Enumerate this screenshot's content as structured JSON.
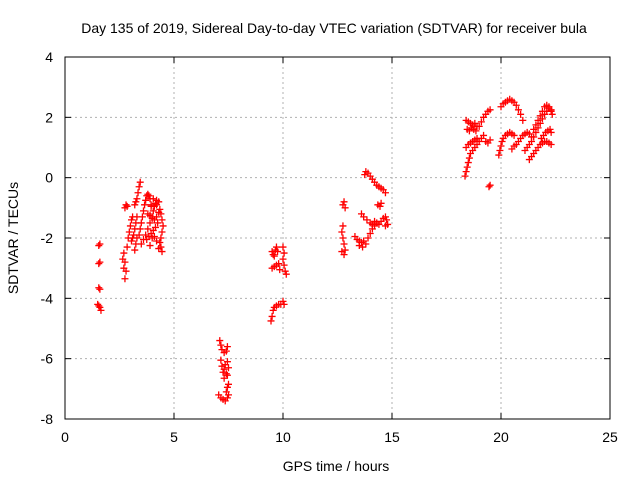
{
  "chart_data": {
    "type": "scatter",
    "title": "Day 135 of 2019, Sidereal Day-to-day VTEC variation (SDTVAR) for receiver bula",
    "xlabel": "GPS time / hours",
    "ylabel": "SDTVAR / TECUs",
    "xlim": [
      0,
      25
    ],
    "ylim": [
      -8,
      4
    ],
    "xticks": [
      0,
      5,
      10,
      15,
      20,
      25
    ],
    "yticks": [
      -8,
      -6,
      -4,
      -2,
      0,
      2,
      4
    ],
    "xtick_labels": [
      "0",
      "5",
      "10",
      "15",
      "20",
      "25"
    ],
    "ytick_labels": [
      "-8",
      "-6",
      "-4",
      "-2",
      "0",
      "2",
      "4"
    ],
    "grid": true,
    "marker": "plus",
    "color": "#ff0000",
    "series": [
      {
        "points": [
          [
            1.55,
            -2.25
          ],
          [
            1.6,
            -2.2
          ],
          [
            1.55,
            -2.85
          ],
          [
            1.6,
            -2.8
          ],
          [
            1.55,
            -3.65
          ],
          [
            1.6,
            -3.7
          ],
          [
            1.5,
            -4.2
          ],
          [
            1.55,
            -4.25
          ],
          [
            1.6,
            -4.3
          ],
          [
            1.65,
            -4.4
          ],
          [
            2.65,
            -2.7
          ],
          [
            2.7,
            -2.5
          ],
          [
            2.75,
            -2.8
          ],
          [
            2.8,
            -3.1
          ],
          [
            2.75,
            -3.35
          ],
          [
            2.7,
            -3.0
          ],
          [
            2.85,
            -2.3
          ],
          [
            2.9,
            -2.0
          ],
          [
            2.95,
            -1.8
          ],
          [
            3.0,
            -1.6
          ],
          [
            3.05,
            -1.4
          ],
          [
            3.1,
            -1.3
          ],
          [
            2.75,
            -1.0
          ],
          [
            2.8,
            -0.9
          ],
          [
            2.85,
            -0.95
          ],
          [
            3.05,
            -2.1
          ],
          [
            3.1,
            -2.0
          ],
          [
            3.15,
            -1.9
          ],
          [
            3.2,
            -1.7
          ],
          [
            3.25,
            -1.5
          ],
          [
            3.3,
            -1.3
          ],
          [
            3.2,
            -0.9
          ],
          [
            3.25,
            -0.8
          ],
          [
            3.3,
            -0.7
          ],
          [
            3.35,
            -0.5
          ],
          [
            3.4,
            -0.3
          ],
          [
            3.45,
            -0.15
          ],
          [
            3.2,
            -2.4
          ],
          [
            3.25,
            -2.2
          ],
          [
            3.3,
            -2.0
          ],
          [
            3.4,
            -1.9
          ],
          [
            3.45,
            -1.7
          ],
          [
            3.5,
            -1.5
          ],
          [
            3.55,
            -1.3
          ],
          [
            3.6,
            -1.1
          ],
          [
            3.65,
            -0.9
          ],
          [
            3.7,
            -0.75
          ],
          [
            3.75,
            -0.6
          ],
          [
            3.8,
            -0.55
          ],
          [
            3.85,
            -0.6
          ],
          [
            3.9,
            -0.7
          ],
          [
            3.95,
            -0.9
          ],
          [
            3.5,
            -2.2
          ],
          [
            3.6,
            -2.05
          ],
          [
            3.7,
            -1.9
          ],
          [
            3.8,
            -1.7
          ],
          [
            3.9,
            -1.5
          ],
          [
            4.0,
            -1.3
          ],
          [
            4.05,
            -1.1
          ],
          [
            4.1,
            -0.95
          ],
          [
            4.15,
            -0.85
          ],
          [
            4.2,
            -0.9
          ],
          [
            3.75,
            -2.05
          ],
          [
            3.85,
            -1.95
          ],
          [
            3.95,
            -1.85
          ],
          [
            4.05,
            -1.75
          ],
          [
            4.15,
            -1.65
          ],
          [
            4.25,
            -1.5
          ],
          [
            3.8,
            -1.2
          ],
          [
            3.9,
            -1.25
          ],
          [
            4.0,
            -1.35
          ],
          [
            4.1,
            -1.4
          ],
          [
            4.2,
            -1.3
          ],
          [
            4.3,
            -1.15
          ],
          [
            4.35,
            -1.05
          ],
          [
            4.4,
            -1.2
          ],
          [
            4.45,
            -1.4
          ],
          [
            4.5,
            -1.6
          ],
          [
            4.45,
            -1.8
          ],
          [
            4.4,
            -2.0
          ],
          [
            4.35,
            -2.15
          ],
          [
            4.4,
            -2.3
          ],
          [
            4.45,
            -2.45
          ],
          [
            4.3,
            -2.35
          ],
          [
            4.2,
            -2.1
          ],
          [
            4.1,
            -1.95
          ],
          [
            4.0,
            -2.0
          ],
          [
            3.9,
            -2.25
          ],
          [
            3.95,
            -0.95
          ],
          [
            4.05,
            -0.7
          ],
          [
            4.2,
            -0.75
          ],
          [
            4.3,
            -0.8
          ],
          [
            7.1,
            -5.4
          ],
          [
            7.15,
            -5.55
          ],
          [
            7.2,
            -5.7
          ],
          [
            7.3,
            -5.8
          ],
          [
            7.4,
            -5.75
          ],
          [
            7.45,
            -5.6
          ],
          [
            7.15,
            -6.05
          ],
          [
            7.2,
            -6.25
          ],
          [
            7.25,
            -6.45
          ],
          [
            7.3,
            -6.35
          ],
          [
            7.35,
            -6.2
          ],
          [
            7.45,
            -6.1
          ],
          [
            7.5,
            -6.3
          ],
          [
            7.45,
            -6.55
          ],
          [
            7.4,
            -6.5
          ],
          [
            7.3,
            -6.65
          ],
          [
            7.05,
            -7.2
          ],
          [
            7.15,
            -7.3
          ],
          [
            7.25,
            -7.35
          ],
          [
            7.35,
            -7.4
          ],
          [
            7.4,
            -7.1
          ],
          [
            7.45,
            -6.95
          ],
          [
            7.5,
            -6.85
          ],
          [
            7.5,
            -7.2
          ],
          [
            7.45,
            -7.3
          ],
          [
            9.5,
            -2.45
          ],
          [
            9.55,
            -2.55
          ],
          [
            9.6,
            -2.6
          ],
          [
            9.65,
            -2.4
          ],
          [
            9.7,
            -2.3
          ],
          [
            9.75,
            -2.45
          ],
          [
            9.5,
            -3.0
          ],
          [
            9.6,
            -2.95
          ],
          [
            9.7,
            -2.9
          ],
          [
            9.8,
            -2.85
          ],
          [
            9.85,
            -3.05
          ],
          [
            9.45,
            -4.75
          ],
          [
            9.5,
            -4.6
          ],
          [
            9.55,
            -4.4
          ],
          [
            9.6,
            -4.3
          ],
          [
            9.7,
            -4.25
          ],
          [
            9.8,
            -4.2
          ],
          [
            9.9,
            -4.2
          ],
          [
            10.0,
            -4.1
          ],
          [
            10.05,
            -4.2
          ],
          [
            10.0,
            -2.3
          ],
          [
            10.05,
            -2.5
          ],
          [
            10.0,
            -2.7
          ],
          [
            10.05,
            -2.9
          ],
          [
            10.1,
            -3.1
          ],
          [
            10.15,
            -3.2
          ],
          [
            12.75,
            -0.9
          ],
          [
            12.8,
            -0.8
          ],
          [
            12.85,
            -1.0
          ],
          [
            12.75,
            -1.6
          ],
          [
            12.7,
            -1.8
          ],
          [
            12.75,
            -2.0
          ],
          [
            12.8,
            -2.2
          ],
          [
            12.85,
            -2.4
          ],
          [
            12.8,
            -2.55
          ],
          [
            12.7,
            -2.45
          ],
          [
            13.3,
            -1.95
          ],
          [
            13.4,
            -2.05
          ],
          [
            13.5,
            -2.1
          ],
          [
            13.6,
            -2.15
          ],
          [
            13.7,
            -2.1
          ],
          [
            13.8,
            -2.2
          ],
          [
            13.65,
            -2.3
          ],
          [
            13.5,
            -2.25
          ],
          [
            13.9,
            -2.0
          ],
          [
            14.0,
            -1.85
          ],
          [
            14.1,
            -1.7
          ],
          [
            14.2,
            -1.6
          ],
          [
            14.3,
            -1.5
          ],
          [
            14.4,
            -1.55
          ],
          [
            14.5,
            -1.45
          ],
          [
            14.6,
            -1.35
          ],
          [
            14.7,
            -1.3
          ],
          [
            14.75,
            -1.4
          ],
          [
            14.8,
            -1.55
          ],
          [
            14.7,
            -1.6
          ],
          [
            13.75,
            0.1
          ],
          [
            13.8,
            0.2
          ],
          [
            13.9,
            0.15
          ],
          [
            14.0,
            0.05
          ],
          [
            14.1,
            -0.05
          ],
          [
            14.2,
            -0.15
          ],
          [
            14.3,
            -0.25
          ],
          [
            14.4,
            -0.3
          ],
          [
            14.5,
            -0.35
          ],
          [
            14.6,
            -0.4
          ],
          [
            14.7,
            -0.5
          ],
          [
            14.35,
            -0.9
          ],
          [
            14.45,
            -0.95
          ],
          [
            14.5,
            -0.85
          ],
          [
            13.6,
            -1.2
          ],
          [
            13.7,
            -1.3
          ],
          [
            13.85,
            -1.4
          ],
          [
            14.0,
            -1.5
          ],
          [
            14.1,
            -1.55
          ],
          [
            14.2,
            -1.45
          ],
          [
            18.4,
            1.9
          ],
          [
            18.5,
            1.85
          ],
          [
            18.6,
            1.8
          ],
          [
            18.7,
            1.75
          ],
          [
            18.8,
            1.8
          ],
          [
            18.9,
            1.7
          ],
          [
            18.45,
            1.6
          ],
          [
            18.55,
            1.55
          ],
          [
            18.65,
            1.65
          ],
          [
            18.75,
            1.6
          ],
          [
            18.85,
            1.55
          ],
          [
            19.0,
            1.7
          ],
          [
            19.1,
            1.85
          ],
          [
            19.2,
            2.0
          ],
          [
            19.3,
            2.1
          ],
          [
            19.4,
            2.2
          ],
          [
            19.5,
            2.25
          ],
          [
            18.4,
            1.0
          ],
          [
            18.5,
            1.1
          ],
          [
            18.6,
            1.15
          ],
          [
            18.7,
            1.2
          ],
          [
            18.8,
            1.25
          ],
          [
            18.9,
            1.3
          ],
          [
            19.0,
            1.2
          ],
          [
            19.1,
            1.3
          ],
          [
            19.2,
            1.4
          ],
          [
            19.3,
            1.2
          ],
          [
            19.4,
            1.15
          ],
          [
            19.5,
            1.25
          ],
          [
            18.35,
            0.05
          ],
          [
            18.4,
            0.2
          ],
          [
            18.45,
            0.35
          ],
          [
            18.5,
            0.5
          ],
          [
            18.55,
            0.65
          ],
          [
            18.6,
            0.8
          ],
          [
            18.7,
            0.9
          ],
          [
            18.8,
            1.0
          ],
          [
            18.9,
            1.1
          ],
          [
            19.45,
            -0.3
          ],
          [
            19.5,
            -0.25
          ],
          [
            19.9,
            0.75
          ],
          [
            19.95,
            0.9
          ],
          [
            20.0,
            1.05
          ],
          [
            20.05,
            1.2
          ],
          [
            20.1,
            1.3
          ],
          [
            20.2,
            1.4
          ],
          [
            20.3,
            1.45
          ],
          [
            20.4,
            1.5
          ],
          [
            20.5,
            1.45
          ],
          [
            20.6,
            1.4
          ],
          [
            20.0,
            2.35
          ],
          [
            20.1,
            2.45
          ],
          [
            20.2,
            2.5
          ],
          [
            20.3,
            2.55
          ],
          [
            20.4,
            2.6
          ],
          [
            20.5,
            2.55
          ],
          [
            20.6,
            2.5
          ],
          [
            20.7,
            2.4
          ],
          [
            20.8,
            2.25
          ],
          [
            20.9,
            2.1
          ],
          [
            21.0,
            1.9
          ],
          [
            20.5,
            0.95
          ],
          [
            20.6,
            1.05
          ],
          [
            20.7,
            1.1
          ],
          [
            20.8,
            1.2
          ],
          [
            20.9,
            1.3
          ],
          [
            21.0,
            1.4
          ],
          [
            21.1,
            1.45
          ],
          [
            21.2,
            1.5
          ],
          [
            21.3,
            1.45
          ],
          [
            21.4,
            1.35
          ],
          [
            21.1,
            0.9
          ],
          [
            21.2,
            1.0
          ],
          [
            21.3,
            1.1
          ],
          [
            21.4,
            1.2
          ],
          [
            21.5,
            1.35
          ],
          [
            21.6,
            1.5
          ],
          [
            21.7,
            1.65
          ],
          [
            21.8,
            1.8
          ],
          [
            21.9,
            1.95
          ],
          [
            22.0,
            2.1
          ],
          [
            22.1,
            2.2
          ],
          [
            22.2,
            2.3
          ],
          [
            22.3,
            2.25
          ],
          [
            22.35,
            2.1
          ],
          [
            21.3,
            0.6
          ],
          [
            21.4,
            0.7
          ],
          [
            21.5,
            0.8
          ],
          [
            21.6,
            0.9
          ],
          [
            21.7,
            1.0
          ],
          [
            21.8,
            1.1
          ],
          [
            21.9,
            1.15
          ],
          [
            22.0,
            1.2
          ],
          [
            22.1,
            1.2
          ],
          [
            22.2,
            1.15
          ],
          [
            22.3,
            1.1
          ],
          [
            21.5,
            1.6
          ],
          [
            21.6,
            1.75
          ],
          [
            21.7,
            1.9
          ],
          [
            21.8,
            2.05
          ],
          [
            21.9,
            2.2
          ],
          [
            22.0,
            2.35
          ],
          [
            22.1,
            2.4
          ],
          [
            22.2,
            2.35
          ],
          [
            22.3,
            2.2
          ],
          [
            21.85,
            1.3
          ],
          [
            21.95,
            1.4
          ],
          [
            22.05,
            1.5
          ],
          [
            22.15,
            1.55
          ],
          [
            22.25,
            1.6
          ],
          [
            22.3,
            1.5
          ]
        ]
      }
    ]
  }
}
